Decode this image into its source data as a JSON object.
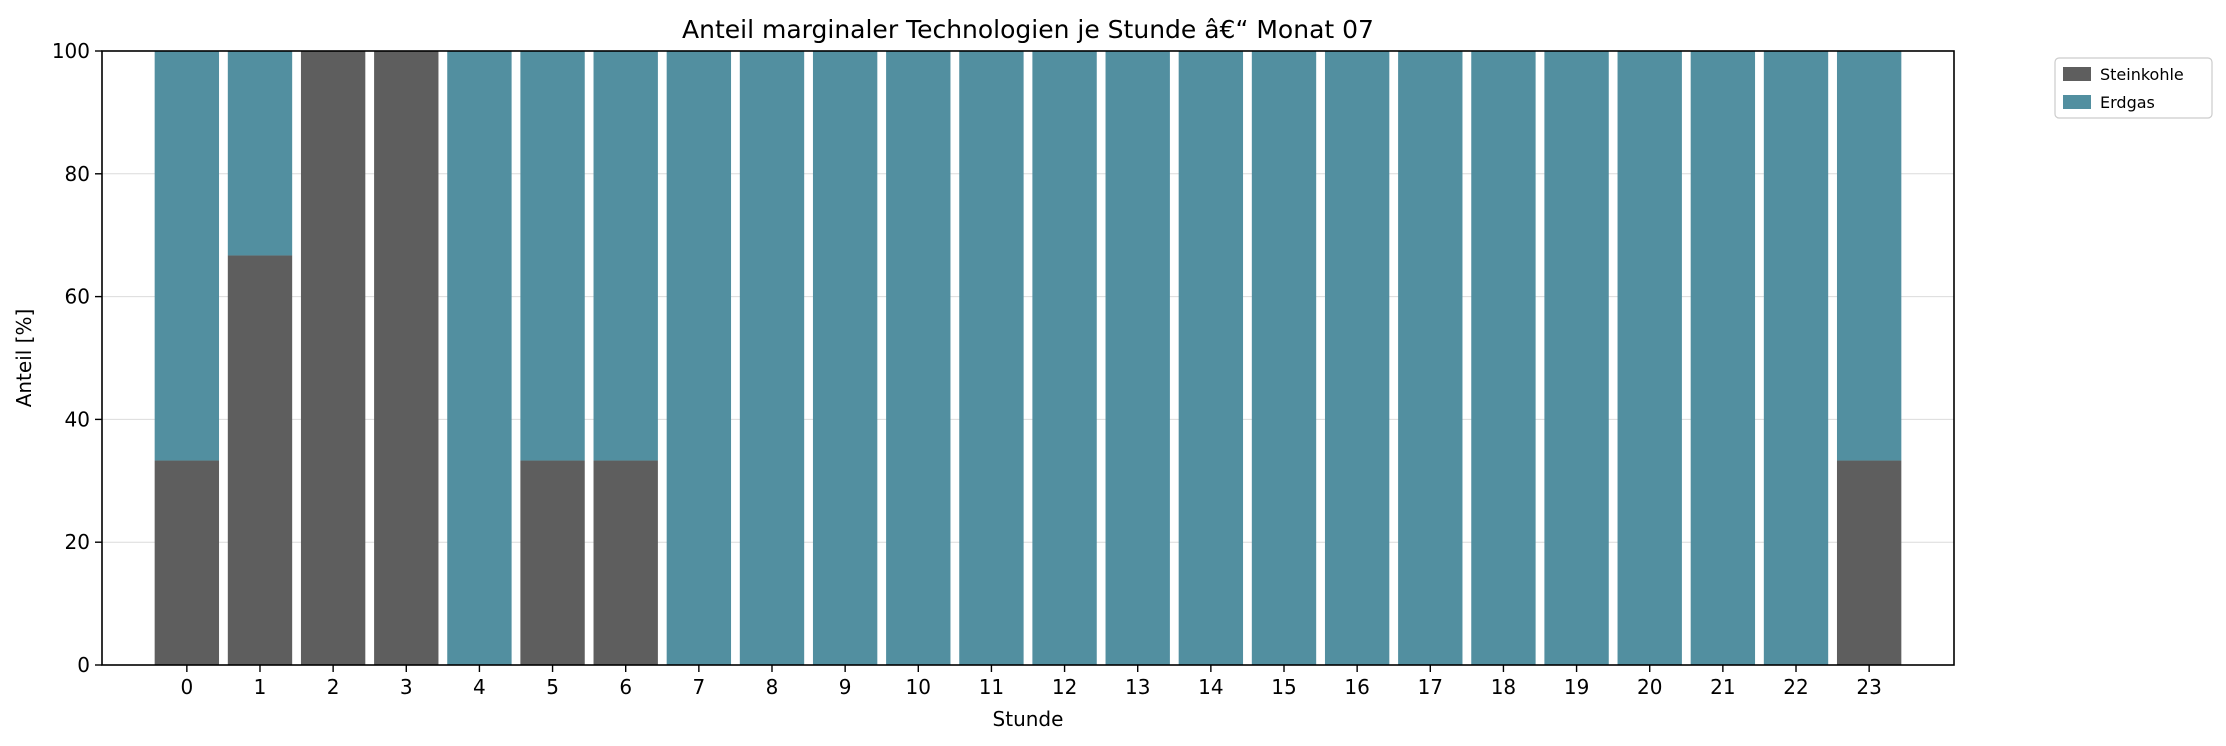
{
  "chart_data": {
    "type": "bar",
    "stacked": true,
    "title": "Anteil marginaler Technologien je Stunde â€“ Monat 07",
    "xlabel": "Stunde",
    "ylabel": "Anteil [%]",
    "ylim": [
      0,
      100
    ],
    "yticks": [
      0,
      20,
      40,
      60,
      80,
      100
    ],
    "grid": "horizontal",
    "legend": "outside-top-right",
    "categories": [
      "0",
      "1",
      "2",
      "3",
      "4",
      "5",
      "6",
      "7",
      "8",
      "9",
      "10",
      "11",
      "12",
      "13",
      "14",
      "15",
      "16",
      "17",
      "18",
      "19",
      "20",
      "21",
      "22",
      "23"
    ],
    "series": [
      {
        "name": "Steinkohle",
        "color": "#5e5e5e",
        "values": [
          33.3,
          66.7,
          100,
          100,
          0,
          33.3,
          33.3,
          0,
          0,
          0,
          0,
          0,
          0,
          0,
          0,
          0,
          0,
          0,
          0,
          0,
          0,
          0,
          0,
          33.3
        ]
      },
      {
        "name": "Erdgas",
        "color": "#528fa0",
        "values": [
          66.7,
          33.3,
          0,
          0,
          100,
          66.7,
          66.7,
          100,
          100,
          100,
          100,
          100,
          100,
          100,
          100,
          100,
          100,
          100,
          100,
          100,
          100,
          100,
          100,
          66.7
        ]
      }
    ]
  }
}
